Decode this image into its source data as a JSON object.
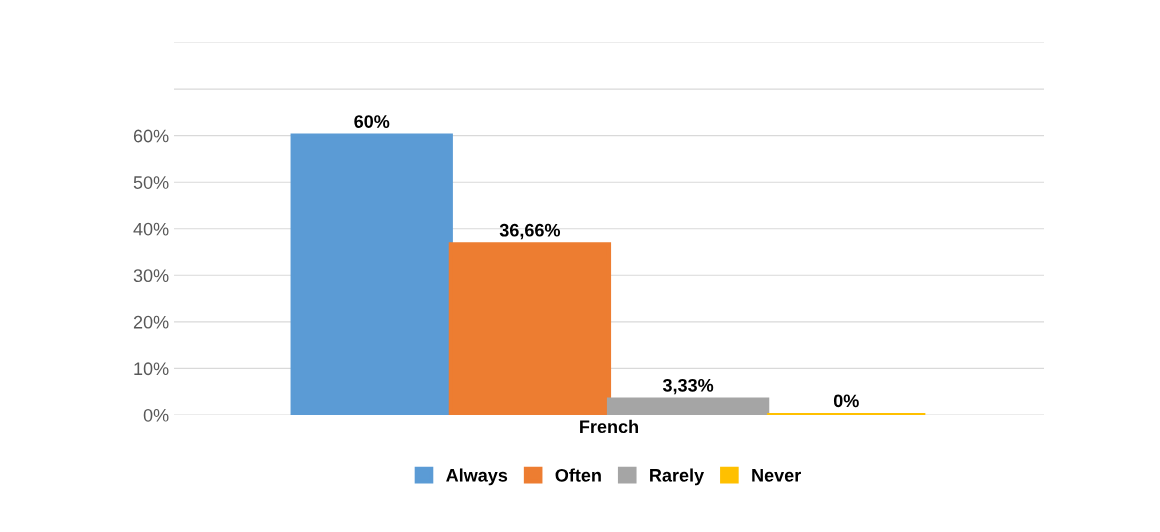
{
  "chart_data": {
    "type": "bar",
    "categories": [
      "French"
    ],
    "series": [
      {
        "name": "Always",
        "color": "#5b9bd5",
        "values": [
          60
        ],
        "value_labels": [
          "60%"
        ]
      },
      {
        "name": "Often",
        "color": "#ed7d31",
        "values": [
          36.66
        ],
        "value_labels": [
          "36,66%"
        ]
      },
      {
        "name": "Rarely",
        "color": "#a5a5a5",
        "values": [
          3.33
        ],
        "value_labels": [
          "3,33%"
        ]
      },
      {
        "name": "Never",
        "color": "#ffc000",
        "values": [
          0
        ],
        "value_labels": [
          "0%"
        ]
      }
    ],
    "ylim": [
      0,
      80
    ],
    "yticks": [
      {
        "value": 0,
        "label": "0%"
      },
      {
        "value": 10,
        "label": "10%"
      },
      {
        "value": 20,
        "label": "20%"
      },
      {
        "value": 30,
        "label": "30%"
      },
      {
        "value": 40,
        "label": "40%"
      },
      {
        "value": 50,
        "label": "50%"
      },
      {
        "value": 60,
        "label": "60%"
      },
      {
        "value": 70,
        "label": null
      },
      {
        "value": 80,
        "label": null
      }
    ],
    "grid": "y",
    "legend": "bottom"
  }
}
